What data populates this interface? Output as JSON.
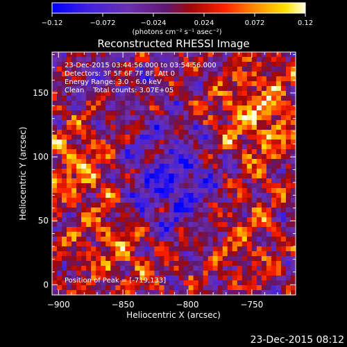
{
  "chart_data": {
    "type": "heatmap",
    "title": "Reconstructed RHESSI Image",
    "xlabel": "Heliocentric X (arcsec)",
    "ylabel": "Heliocentric Y (arcsec)",
    "xlim": [
      -905,
      -716
    ],
    "ylim": [
      -8,
      182
    ],
    "x_ticks": [
      -900,
      -850,
      -800,
      -750
    ],
    "x_tick_labels": [
      "−900",
      "−850",
      "−800",
      "−750"
    ],
    "y_ticks": [
      0,
      50,
      100,
      150
    ],
    "y_tick_labels": [
      "0",
      "50",
      "100",
      "150"
    ],
    "colorbar": {
      "range": [
        -0.12,
        0.12
      ],
      "ticks": [
        -0.12,
        -0.072,
        -0.024,
        0.024,
        0.072,
        0.12
      ],
      "tick_labels": [
        "−0.12",
        "−0.072",
        "−0.024",
        "0.024",
        "0.072",
        "0.12"
      ],
      "unit_label": "(photons cm⁻² s⁻¹ asec⁻²)",
      "colors": [
        "#0000ff",
        "#6030c0",
        "#702080",
        "#b01000",
        "#ff3000",
        "#ff9000",
        "#ffe000",
        "#ffffd0"
      ]
    },
    "annotations": [
      "23-Dec-2015 03:44:56.000 to 03:54:56.000",
      "Detectors: 3F 5F 6F 7F 8F, Att 0",
      "Energy Range: 3.0 - 6.0 keV",
      "Clean    Total counts: 3.07E+05"
    ],
    "peak_label": "Position of Peak = [-719,133]",
    "peak_position": [
      -719,
      133
    ],
    "grid": false
  },
  "footer": {
    "timestamp": "23-Dec-2015 08:12"
  }
}
